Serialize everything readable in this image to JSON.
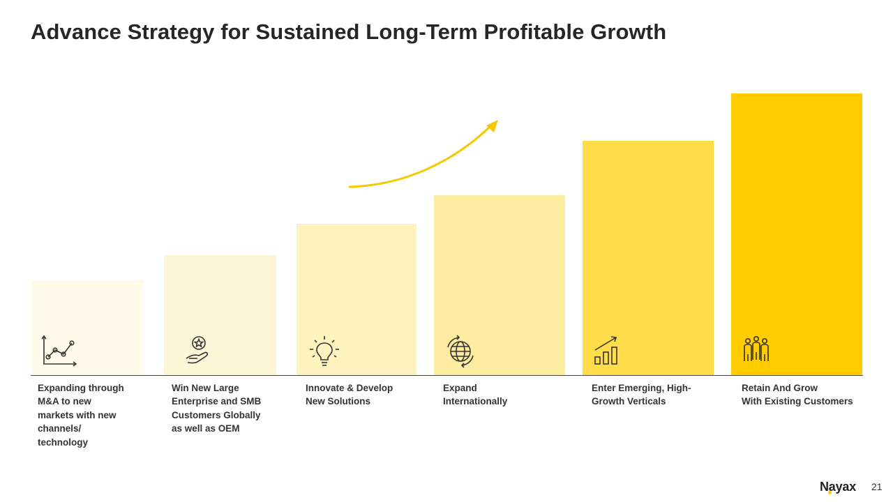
{
  "title": "Advance Strategy for Sustained Long-Term Profitable Growth",
  "colors": {
    "bar_1": "#fefbea",
    "bar_2": "#fef7d7",
    "bar_3": "#fef2bf",
    "bar_4": "#fdeba0",
    "bar_5": "#ffdc4a",
    "bar_6": "#ffcc00",
    "arrow": "#f5c800",
    "icon_stroke": "#333333"
  },
  "steps": [
    {
      "icon": "line-chart-icon",
      "label": "Expanding through\nM&A to new\nmarkets with new\nchannels/\ntechnology"
    },
    {
      "icon": "hand-star-icon",
      "label": "Win New Large\nEnterprise and SMB\nCustomers Globally\nas well as OEM"
    },
    {
      "icon": "lightbulb-icon",
      "label": "Innovate & Develop\nNew Solutions"
    },
    {
      "icon": "globe-icon",
      "label": "Expand\nInternationally"
    },
    {
      "icon": "growth-chart-icon",
      "label": "Enter Emerging, High-\nGrowth Verticals"
    },
    {
      "icon": "people-group-icon",
      "label": "Retain And Grow\nWith Existing Customers"
    }
  ],
  "footer": {
    "logo": "Nayax",
    "page_number": "21"
  }
}
